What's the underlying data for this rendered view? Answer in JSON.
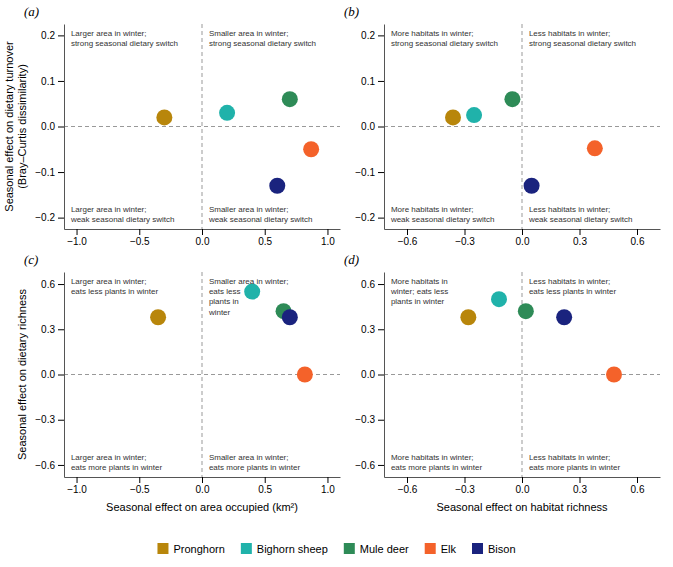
{
  "chart_data": [
    {
      "type": "scatter",
      "title": "(a)",
      "ylabel": "Seasonal effect on dietary turnover\n(Bray–Curtis dissimilarity)",
      "xlim": [
        -1.1,
        1.1
      ],
      "ylim": [
        -0.225,
        0.225
      ],
      "xticks": [
        {
          "value": -1.0,
          "label": "−1.0"
        },
        {
          "value": -0.5,
          "label": "−0.5"
        },
        {
          "value": 0.0,
          "label": "0.0"
        },
        0.5,
        {
          "value": 1.0,
          "label": "1.0"
        }
      ],
      "yticks": [
        {
          "value": -0.2,
          "label": "−0.2"
        },
        {
          "value": -0.1,
          "label": "−0.1"
        },
        {
          "value": 0.0,
          "label": "0.0"
        },
        0.1,
        0.2
      ],
      "series": [
        {
          "name": "Pronghorn",
          "color": "#B8860B",
          "x": [
            -0.3
          ],
          "values": [
            0.02
          ]
        },
        {
          "name": "Bighorn sheep",
          "color": "#20B2AA",
          "x": [
            0.2
          ],
          "values": [
            0.03
          ]
        },
        {
          "name": "Mule deer",
          "color": "#2E8B57",
          "x": [
            0.7
          ],
          "values": [
            0.06
          ]
        },
        {
          "name": "Elk",
          "color": "#F4622A",
          "x": [
            0.87
          ],
          "values": [
            -0.05
          ]
        },
        {
          "name": "Bison",
          "color": "#1A237E",
          "x": [
            0.6
          ],
          "values": [
            -0.13
          ]
        }
      ],
      "annotations": [
        "Larger area in winter;\nstrong seasonal dietary switch",
        "Smaller area in winter;\nstrong seasonal dietary switch",
        "Larger area in winter;\nweak seasonal dietary switch",
        "Smaller area in winter;\nweak seasonal dietary switch"
      ]
    },
    {
      "type": "scatter",
      "title": "(b)",
      "xlim": [
        -0.72,
        0.72
      ],
      "ylim": [
        -0.225,
        0.225
      ],
      "xticks": [
        {
          "value": -0.6,
          "label": "−0.6"
        },
        {
          "value": -0.3,
          "label": "−0.3"
        },
        {
          "value": 0.0,
          "label": "0.0"
        },
        0.3,
        0.6
      ],
      "yticks": [
        {
          "value": -0.2,
          "label": "−0.2"
        },
        {
          "value": -0.1,
          "label": "−0.1"
        },
        {
          "value": 0.0,
          "label": "0.0"
        },
        0.1,
        0.2
      ],
      "series": [
        {
          "color": "#B8860B",
          "x": [
            -0.36
          ],
          "values": [
            0.02
          ]
        },
        {
          "color": "#20B2AA",
          "x": [
            -0.25
          ],
          "values": [
            0.025
          ]
        },
        {
          "color": "#2E8B57",
          "x": [
            -0.05
          ],
          "values": [
            0.06
          ]
        },
        {
          "color": "#F4622A",
          "x": [
            0.38
          ],
          "values": [
            -0.048
          ]
        },
        {
          "color": "#1A237E",
          "x": [
            0.05
          ],
          "values": [
            -0.13
          ]
        }
      ],
      "annotations": [
        "More habitats in winter;\nstrong seasonal dietary switch",
        "Less habitats in winter;\nstrong seasonal dietary switch",
        "More habitats in winter;\nweak seasonal dietary switch",
        "Less habitats in winter;\nweak seasonal dietary switch"
      ]
    },
    {
      "type": "scatter",
      "title": "(c)",
      "xlabel": "Seasonal effect on area occupied (km²)",
      "ylabel": "Seasonal effect on dietary richness",
      "xlim": [
        -1.1,
        1.1
      ],
      "ylim": [
        -0.68,
        0.68
      ],
      "xticks": [
        {
          "value": -1.0,
          "label": "−1.0"
        },
        {
          "value": -0.5,
          "label": "−0.5"
        },
        {
          "value": 0.0,
          "label": "0.0"
        },
        0.5,
        {
          "value": 1.0,
          "label": "1.0"
        }
      ],
      "yticks": [
        {
          "value": -0.6,
          "label": "−0.6"
        },
        {
          "value": -0.3,
          "label": "−0.3"
        },
        {
          "value": 0.0,
          "label": "0.0"
        },
        0.3,
        0.6
      ],
      "series": [
        {
          "color": "#B8860B",
          "x": [
            -0.35
          ],
          "values": [
            0.38
          ]
        },
        {
          "color": "#20B2AA",
          "x": [
            0.4
          ],
          "values": [
            0.55
          ]
        },
        {
          "color": "#2E8B57",
          "x": [
            0.65
          ],
          "values": [
            0.42
          ]
        },
        {
          "color": "#F4622A",
          "x": [
            0.82
          ],
          "values": [
            0.0
          ]
        },
        {
          "color": "#1A237E",
          "x": [
            0.7
          ],
          "values": [
            0.38
          ]
        }
      ],
      "annotations": [
        "Larger area in winter;\neats less plants in winter",
        "Smaller area in winter;\neats less\nplants in\nwinter",
        "Larger area in winter;\neats more plants in winter",
        "Smaller area in winter;\neats more plants in winter"
      ]
    },
    {
      "type": "scatter",
      "title": "(d)",
      "xlabel": "Seasonal effect on habitat richness",
      "xlim": [
        -0.72,
        0.72
      ],
      "ylim": [
        -0.68,
        0.68
      ],
      "xticks": [
        {
          "value": -0.6,
          "label": "−0.6"
        },
        {
          "value": -0.3,
          "label": "−0.3"
        },
        {
          "value": 0.0,
          "label": "0.0"
        },
        0.3,
        0.6
      ],
      "yticks": [
        {
          "value": -0.6,
          "label": "−0.6"
        },
        {
          "value": -0.3,
          "label": "−0.3"
        },
        {
          "value": 0.0,
          "label": "0.0"
        },
        0.3,
        0.6
      ],
      "series": [
        {
          "color": "#B8860B",
          "x": [
            -0.28
          ],
          "values": [
            0.38
          ]
        },
        {
          "color": "#20B2AA",
          "x": [
            -0.12
          ],
          "values": [
            0.5
          ]
        },
        {
          "color": "#2E8B57",
          "x": [
            0.02
          ],
          "values": [
            0.42
          ]
        },
        {
          "color": "#F4622A",
          "x": [
            0.48
          ],
          "values": [
            0.0
          ]
        },
        {
          "color": "#1A237E",
          "x": [
            0.22
          ],
          "values": [
            0.38
          ]
        }
      ],
      "annotations": [
        "More habitats in\nwinter; eats less\nplants in winter",
        "Less habitats in winter;\neats less plants in winter",
        "More habitats in winter;\neats more plants in winter",
        "Less habitats in winter;\neats more plants in winter"
      ]
    }
  ]
}
